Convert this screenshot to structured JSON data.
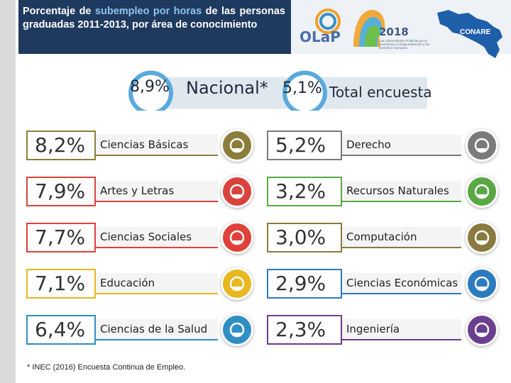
{
  "header": {
    "title_part1": "Porcentaje de ",
    "title_highlight": "subempleo por horas",
    "title_part2": " de las personas graduadas 2011-2013, por área de conocimiento"
  },
  "logos": {
    "olap": "OLaP",
    "year": "2018",
    "olap_subtitle": "Observatorio Laboral de Profesiones CONARE • CCDR-BCCI",
    "tagline": "Las Universidades Públicas por la Autonomía, la Regionalización y los Derechos Humanos",
    "conare": "CONARE"
  },
  "national": {
    "nacional_pct": "8,9%",
    "nacional_label": "Nacional*",
    "encuesta_pct": "5,1%",
    "encuesta_label": "Total encuesta"
  },
  "left_column": [
    {
      "pct": "8,2%",
      "label": "Ciencias Básicas",
      "color": "#8b7d3a",
      "icon": "science-icon"
    },
    {
      "pct": "7,9%",
      "label": "Artes y Letras",
      "color": "#d9433b",
      "icon": "arts-icon"
    },
    {
      "pct": "7,7%",
      "label": "Ciencias Sociales",
      "color": "#e0403a",
      "icon": "social-icon"
    },
    {
      "pct": "7,1%",
      "label": "Educación",
      "color": "#e8b820",
      "icon": "education-icon"
    },
    {
      "pct": "6,4%",
      "label": "Ciencias de la Salud",
      "color": "#2f8fc4",
      "icon": "health-icon"
    }
  ],
  "right_column": [
    {
      "pct": "5,2%",
      "label": "Derecho",
      "color": "#7a7a7a",
      "icon": "law-icon"
    },
    {
      "pct": "3,2%",
      "label": "Recursos Naturales",
      "color": "#5aa844",
      "icon": "nature-icon"
    },
    {
      "pct": "3,0%",
      "label": "Computación",
      "color": "#8a7a40",
      "icon": "computer-icon"
    },
    {
      "pct": "2,9%",
      "label": "Ciencias Económicas",
      "color": "#2c7bc0",
      "icon": "economics-icon"
    },
    {
      "pct": "2,3%",
      "label": "Ingeniería",
      "color": "#6b3f8f",
      "icon": "engineering-icon"
    }
  ],
  "footnote": "* INEC (2016)  Encuesta Continua de Empleo."
}
